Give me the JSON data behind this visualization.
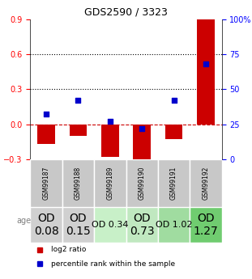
{
  "title": "GDS2590 / 3323",
  "samples": [
    "GSM99187",
    "GSM99188",
    "GSM99189",
    "GSM99190",
    "GSM99191",
    "GSM99192"
  ],
  "log2_ratio": [
    -0.17,
    -0.1,
    -0.28,
    -0.34,
    -0.13,
    0.9
  ],
  "percentile_rank": [
    0.32,
    0.42,
    0.27,
    0.22,
    0.42,
    0.68
  ],
  "ylim_left": [
    -0.3,
    0.9
  ],
  "ylim_right": [
    0,
    100
  ],
  "yticks_left": [
    -0.3,
    0.0,
    0.3,
    0.6,
    0.9
  ],
  "yticks_right": [
    0,
    25,
    50,
    75,
    100
  ],
  "hlines": [
    0.3,
    0.6
  ],
  "bar_color": "#cc0000",
  "dot_color": "#0000cc",
  "dashed_line_color": "#cc0000",
  "age_labels": [
    "OD\n0.08",
    "OD\n0.15",
    "OD 0.34",
    "OD\n0.73",
    "OD 1.02",
    "OD\n1.27"
  ],
  "age_label_sizes": [
    10,
    10,
    8,
    10,
    8,
    10
  ],
  "age_bg_colors": [
    "#d0d0d0",
    "#d0d0d0",
    "#c8f0c8",
    "#c0e8c0",
    "#a0dca0",
    "#70cc70"
  ],
  "sample_bg_color": "#c8c8c8",
  "legend_items": [
    "log2 ratio",
    "percentile rank within the sample"
  ],
  "legend_colors": [
    "#cc0000",
    "#0000cc"
  ]
}
